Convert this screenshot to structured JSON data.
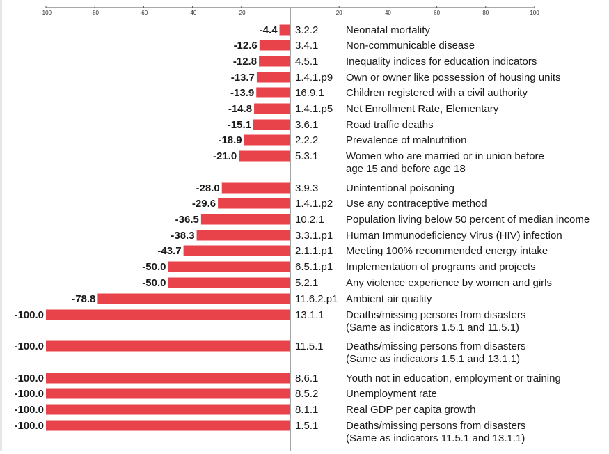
{
  "chart_data": {
    "type": "bar",
    "orientation": "horizontal",
    "xlim": [
      -100,
      100
    ],
    "x_ticks": [
      "-100",
      "-80",
      "-60",
      "-40",
      "-20",
      "20",
      "40",
      "60",
      "80",
      "100"
    ],
    "bar_color": "#e8424b",
    "categories": [
      {
        "code": "3.2.2",
        "label": [
          "Neonatal mortality"
        ],
        "value": -4.4,
        "value_label": "-4.4"
      },
      {
        "code": "3.4.1",
        "label": [
          "Non-communicable disease"
        ],
        "value": -12.6,
        "value_label": "-12.6"
      },
      {
        "code": "4.5.1",
        "label": [
          "Inequality indices for education indicators"
        ],
        "value": -12.8,
        "value_label": "-12.8"
      },
      {
        "code": "1.4.1.p9",
        "label": [
          "Own or owner like possession of housing units"
        ],
        "value": -13.7,
        "value_label": "-13.7"
      },
      {
        "code": "16.9.1",
        "label": [
          "Children registered with a civil authority"
        ],
        "value": -13.9,
        "value_label": "-13.9"
      },
      {
        "code": "1.4.1.p5",
        "label": [
          "Net Enrollment Rate, Elementary"
        ],
        "value": -14.8,
        "value_label": "-14.8"
      },
      {
        "code": "3.6.1",
        "label": [
          "Road traffic deaths"
        ],
        "value": -15.1,
        "value_label": "-15.1"
      },
      {
        "code": "2.2.2",
        "label": [
          "Prevalence of malnutrition"
        ],
        "value": -18.9,
        "value_label": "-18.9"
      },
      {
        "code": "5.3.1",
        "label": [
          "Women who are married or in union before",
          "age 15 and before age 18"
        ],
        "value": -21.0,
        "value_label": "-21.0"
      },
      {
        "code": "3.9.3",
        "label": [
          "Unintentional poisoning"
        ],
        "value": -28.0,
        "value_label": "-28.0"
      },
      {
        "code": "1.4.1.p2",
        "label": [
          "Use any contraceptive method"
        ],
        "value": -29.6,
        "value_label": "-29.6"
      },
      {
        "code": "10.2.1",
        "label": [
          "Population living below 50 percent of median income"
        ],
        "value": -36.5,
        "value_label": "-36.5"
      },
      {
        "code": "3.3.1.p1",
        "label": [
          "Human Immunodeficiency Virus (HIV) infection"
        ],
        "value": -38.3,
        "value_label": "-38.3"
      },
      {
        "code": "2.1.1.p1",
        "label": [
          "Meeting 100% recommended energy intake"
        ],
        "value": -43.7,
        "value_label": "-43.7"
      },
      {
        "code": "6.5.1.p1",
        "label": [
          "Implementation of programs and projects"
        ],
        "value": -50.0,
        "value_label": "-50.0"
      },
      {
        "code": "5.2.1",
        "label": [
          "Any violence experience by women and girls"
        ],
        "value": -50.0,
        "value_label": "-50.0"
      },
      {
        "code": "11.6.2.p1",
        "label": [
          "Ambient air quality"
        ],
        "value": -78.8,
        "value_label": "-78.8"
      },
      {
        "code": "13.1.1",
        "label": [
          "Deaths/missing persons from disasters",
          "(Same as indicators 1.5.1 and 11.5.1)"
        ],
        "value": -100.0,
        "value_label": "-100.0"
      },
      {
        "code": "11.5.1",
        "label": [
          "Deaths/missing persons from disasters",
          "(Same as indicators 1.5.1 and 13.1.1)"
        ],
        "value": -100.0,
        "value_label": "-100.0"
      },
      {
        "code": "8.6.1",
        "label": [
          "Youth not in education, employment or training"
        ],
        "value": -100.0,
        "value_label": "-100.0"
      },
      {
        "code": "8.5.2",
        "label": [
          "Unemployment rate"
        ],
        "value": -100.0,
        "value_label": "-100.0"
      },
      {
        "code": "8.1.1",
        "label": [
          "Real GDP per capita growth"
        ],
        "value": -100.0,
        "value_label": "-100.0"
      },
      {
        "code": "1.5.1",
        "label": [
          "Deaths/missing persons from disasters",
          "(Same as indicators 11.5.1 and 13.1.1)"
        ],
        "value": -100.0,
        "value_label": "-100.0"
      }
    ]
  }
}
